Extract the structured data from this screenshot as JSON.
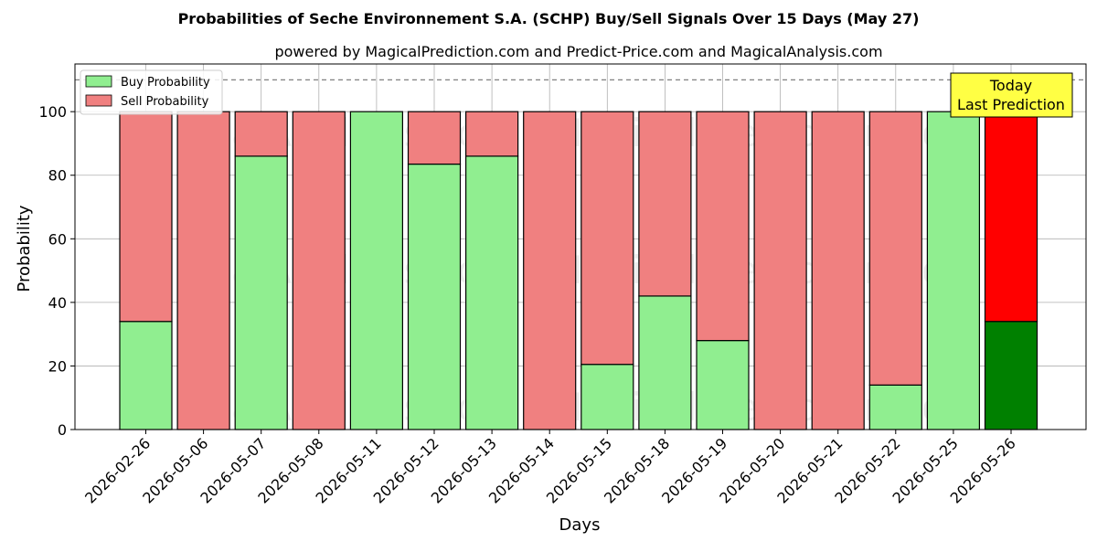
{
  "chart_data": {
    "type": "bar",
    "stacked": true,
    "title": "Probabilities of Seche Environnement S.A. (SCHP) Buy/Sell Signals Over 15 Days (May 27)",
    "subtitle": "powered by MagicalPrediction.com and Predict-Price.com and MagicalAnalysis.com",
    "xlabel": "Days",
    "ylabel": "Probability",
    "ylim": [
      0,
      115
    ],
    "yticks": [
      0,
      20,
      40,
      60,
      80,
      100
    ],
    "reference_line": 110,
    "grid": true,
    "legend_position": "top-left",
    "categories": [
      "2026-02-26",
      "2026-05-06",
      "2026-05-07",
      "2026-05-08",
      "2026-05-11",
      "2026-05-12",
      "2026-05-13",
      "2026-05-14",
      "2026-05-15",
      "2026-05-18",
      "2026-05-19",
      "2026-05-20",
      "2026-05-21",
      "2026-05-22",
      "2026-05-25",
      "2026-05-26"
    ],
    "series": [
      {
        "name": "Buy Probability",
        "color": "#90ee90",
        "highlight_color": "#008000",
        "values": [
          34,
          0,
          86,
          0,
          100,
          83.5,
          86,
          0,
          20.5,
          42,
          28,
          0,
          0,
          14,
          100,
          34
        ]
      },
      {
        "name": "Sell Probability",
        "color": "#f08080",
        "highlight_color": "#ff0000",
        "values": [
          66,
          100,
          14,
          100,
          0,
          16.5,
          14,
          100,
          79.5,
          58,
          72,
          100,
          100,
          86,
          0,
          66
        ]
      }
    ],
    "highlight_index": 15,
    "annotation": {
      "lines": [
        "Today",
        "Last Prediction"
      ],
      "background": "#ffff44"
    },
    "watermarks": [
      "MagicalAnalysis.com",
      "MagicalPrediction.com"
    ]
  }
}
